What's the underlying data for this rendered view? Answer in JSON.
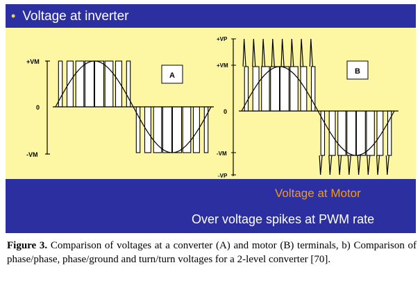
{
  "slide": {
    "title": "Voltage at inverter",
    "bottom_label_1": "Voltage at Motor",
    "bottom_label_2": "Over voltage spikes at PWM rate"
  },
  "panel_a": {
    "label": "A",
    "ticks": [
      "+VM",
      "0",
      "-VM"
    ]
  },
  "panel_b": {
    "label": "B",
    "ticks": [
      "+VP",
      "+VM",
      "0",
      "-VM",
      "-VP"
    ]
  },
  "caption": {
    "label": "Figure 3.",
    "text": "Comparison of voltages at a converter (A) and motor (B) terminals, b) Comparison of phase/phase, phase/ground and turn/turn voltages for a 2-level converter [70]."
  },
  "colors": {
    "slide_background": "#2b2fa0",
    "plot_background": "#fdf7a4",
    "motor_label": "#f29a1e",
    "bullet": "#f2d65a"
  }
}
